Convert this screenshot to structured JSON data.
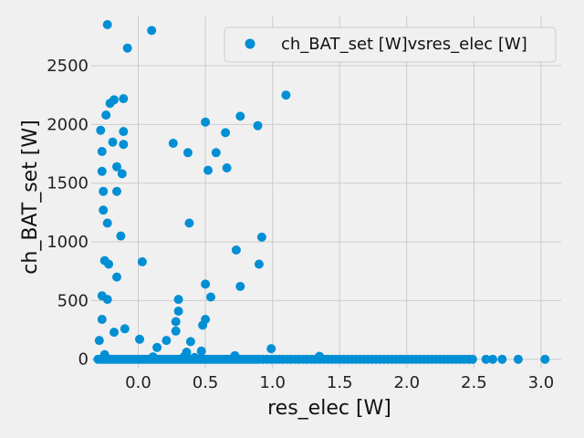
{
  "chart_data": {
    "type": "scatter",
    "xlabel": "res_elec [W]",
    "ylabel": "ch_BAT_set [W]",
    "xlim": [
      -0.35,
      3.15
    ],
    "ylim": [
      -80,
      2920
    ],
    "xticks": [
      "0.0",
      "0.5",
      "1.0",
      "1.5",
      "2.0",
      "2.5",
      "3.0"
    ],
    "xtick_values": [
      0,
      0.5,
      1.0,
      1.5,
      2.0,
      2.5,
      3.0
    ],
    "yticks": [
      "0",
      "500",
      "1000",
      "1500",
      "2000",
      "2500"
    ],
    "ytick_values": [
      0,
      500,
      1000,
      1500,
      2000,
      2500
    ],
    "grid": true,
    "legend_position": "top-right",
    "colors": {
      "marker": "#008fd5",
      "grid": "#cbcbcb",
      "background": "#f0f0f0"
    },
    "series": [
      {
        "name": "ch_BAT_set [W]vsres_elec [W]",
        "points": [
          [
            -0.23,
            2850
          ],
          [
            0.1,
            2800
          ],
          [
            -0.08,
            2650
          ],
          [
            1.1,
            2250
          ],
          [
            -0.21,
            2180
          ],
          [
            -0.18,
            2210
          ],
          [
            -0.11,
            2220
          ],
          [
            -0.24,
            2080
          ],
          [
            0.76,
            2070
          ],
          [
            0.5,
            2020
          ],
          [
            0.89,
            1990
          ],
          [
            -0.28,
            1950
          ],
          [
            -0.11,
            1940
          ],
          [
            0.65,
            1930
          ],
          [
            -0.19,
            1850
          ],
          [
            -0.11,
            1830
          ],
          [
            0.26,
            1840
          ],
          [
            0.37,
            1760
          ],
          [
            0.58,
            1760
          ],
          [
            -0.27,
            1770
          ],
          [
            -0.16,
            1640
          ],
          [
            0.66,
            1630
          ],
          [
            0.52,
            1610
          ],
          [
            -0.27,
            1600
          ],
          [
            -0.12,
            1580
          ],
          [
            -0.26,
            1430
          ],
          [
            -0.16,
            1430
          ],
          [
            -0.26,
            1270
          ],
          [
            -0.23,
            1160
          ],
          [
            0.38,
            1160
          ],
          [
            -0.13,
            1050
          ],
          [
            0.92,
            1040
          ],
          [
            0.73,
            930
          ],
          [
            -0.25,
            840
          ],
          [
            0.03,
            830
          ],
          [
            -0.22,
            810
          ],
          [
            0.9,
            810
          ],
          [
            -0.16,
            700
          ],
          [
            0.5,
            640
          ],
          [
            0.76,
            620
          ],
          [
            -0.27,
            540
          ],
          [
            -0.23,
            510
          ],
          [
            0.3,
            510
          ],
          [
            0.54,
            530
          ],
          [
            0.3,
            410
          ],
          [
            -0.27,
            340
          ],
          [
            0.5,
            340
          ],
          [
            0.28,
            320
          ],
          [
            0.48,
            290
          ],
          [
            -0.1,
            260
          ],
          [
            -0.18,
            230
          ],
          [
            0.28,
            240
          ],
          [
            0.01,
            170
          ],
          [
            0.21,
            160
          ],
          [
            0.39,
            150
          ],
          [
            -0.29,
            160
          ],
          [
            0.14,
            100
          ],
          [
            0.99,
            90
          ],
          [
            0.36,
            60
          ],
          [
            0.47,
            70
          ],
          [
            -0.25,
            40
          ],
          [
            0.72,
            30
          ],
          [
            0.11,
            20
          ],
          [
            0.34,
            20
          ],
          [
            0.42,
            15
          ],
          [
            1.35,
            25
          ],
          [
            -0.3,
            0
          ],
          [
            -0.28,
            0
          ],
          [
            -0.26,
            0
          ],
          [
            -0.24,
            0
          ],
          [
            -0.22,
            0
          ],
          [
            -0.2,
            0
          ],
          [
            -0.18,
            0
          ],
          [
            -0.16,
            0
          ],
          [
            -0.14,
            0
          ],
          [
            -0.12,
            0
          ],
          [
            -0.1,
            0
          ],
          [
            -0.08,
            0
          ],
          [
            -0.06,
            0
          ],
          [
            -0.04,
            0
          ],
          [
            -0.02,
            0
          ],
          [
            0.0,
            0
          ],
          [
            0.02,
            0
          ],
          [
            0.04,
            0
          ],
          [
            0.06,
            0
          ],
          [
            0.08,
            0
          ],
          [
            0.1,
            0
          ],
          [
            0.12,
            0
          ],
          [
            0.14,
            0
          ],
          [
            0.16,
            0
          ],
          [
            0.18,
            0
          ],
          [
            0.2,
            0
          ],
          [
            0.22,
            0
          ],
          [
            0.24,
            0
          ],
          [
            0.26,
            0
          ],
          [
            0.28,
            0
          ],
          [
            0.3,
            0
          ],
          [
            0.32,
            0
          ],
          [
            0.34,
            0
          ],
          [
            0.36,
            0
          ],
          [
            0.38,
            0
          ],
          [
            0.4,
            0
          ],
          [
            0.42,
            0
          ],
          [
            0.44,
            0
          ],
          [
            0.46,
            0
          ],
          [
            0.48,
            0
          ],
          [
            0.5,
            0
          ],
          [
            0.52,
            0
          ],
          [
            0.54,
            0
          ],
          [
            0.56,
            0
          ],
          [
            0.58,
            0
          ],
          [
            0.6,
            0
          ],
          [
            0.62,
            0
          ],
          [
            0.64,
            0
          ],
          [
            0.66,
            0
          ],
          [
            0.68,
            0
          ],
          [
            0.7,
            0
          ],
          [
            0.72,
            0
          ],
          [
            0.74,
            0
          ],
          [
            0.76,
            0
          ],
          [
            0.78,
            0
          ],
          [
            0.8,
            0
          ],
          [
            0.82,
            0
          ],
          [
            0.84,
            0
          ],
          [
            0.86,
            0
          ],
          [
            0.88,
            0
          ],
          [
            0.9,
            0
          ],
          [
            0.93,
            0
          ],
          [
            0.96,
            0
          ],
          [
            0.99,
            0
          ],
          [
            1.02,
            0
          ],
          [
            1.05,
            0
          ],
          [
            1.08,
            0
          ],
          [
            1.11,
            0
          ],
          [
            1.14,
            0
          ],
          [
            1.17,
            0
          ],
          [
            1.2,
            0
          ],
          [
            1.23,
            0
          ],
          [
            1.26,
            0
          ],
          [
            1.29,
            0
          ],
          [
            1.32,
            0
          ],
          [
            1.35,
            0
          ],
          [
            1.38,
            0
          ],
          [
            1.41,
            0
          ],
          [
            1.44,
            0
          ],
          [
            1.47,
            0
          ],
          [
            1.5,
            0
          ],
          [
            1.53,
            0
          ],
          [
            1.56,
            0
          ],
          [
            1.59,
            0
          ],
          [
            1.62,
            0
          ],
          [
            1.65,
            0
          ],
          [
            1.68,
            0
          ],
          [
            1.71,
            0
          ],
          [
            1.74,
            0
          ],
          [
            1.77,
            0
          ],
          [
            1.8,
            0
          ],
          [
            1.83,
            0
          ],
          [
            1.86,
            0
          ],
          [
            1.89,
            0
          ],
          [
            1.92,
            0
          ],
          [
            1.95,
            0
          ],
          [
            1.98,
            0
          ],
          [
            2.01,
            0
          ],
          [
            2.04,
            0
          ],
          [
            2.07,
            0
          ],
          [
            2.1,
            0
          ],
          [
            2.13,
            0
          ],
          [
            2.16,
            0
          ],
          [
            2.19,
            0
          ],
          [
            2.22,
            0
          ],
          [
            2.25,
            0
          ],
          [
            2.28,
            0
          ],
          [
            2.31,
            0
          ],
          [
            2.34,
            0
          ],
          [
            2.37,
            0
          ],
          [
            2.4,
            0
          ],
          [
            2.43,
            0
          ],
          [
            2.46,
            0
          ],
          [
            2.49,
            0
          ],
          [
            2.59,
            0
          ],
          [
            2.64,
            0
          ],
          [
            2.71,
            0
          ],
          [
            2.83,
            0
          ],
          [
            3.03,
            0
          ]
        ]
      }
    ]
  }
}
